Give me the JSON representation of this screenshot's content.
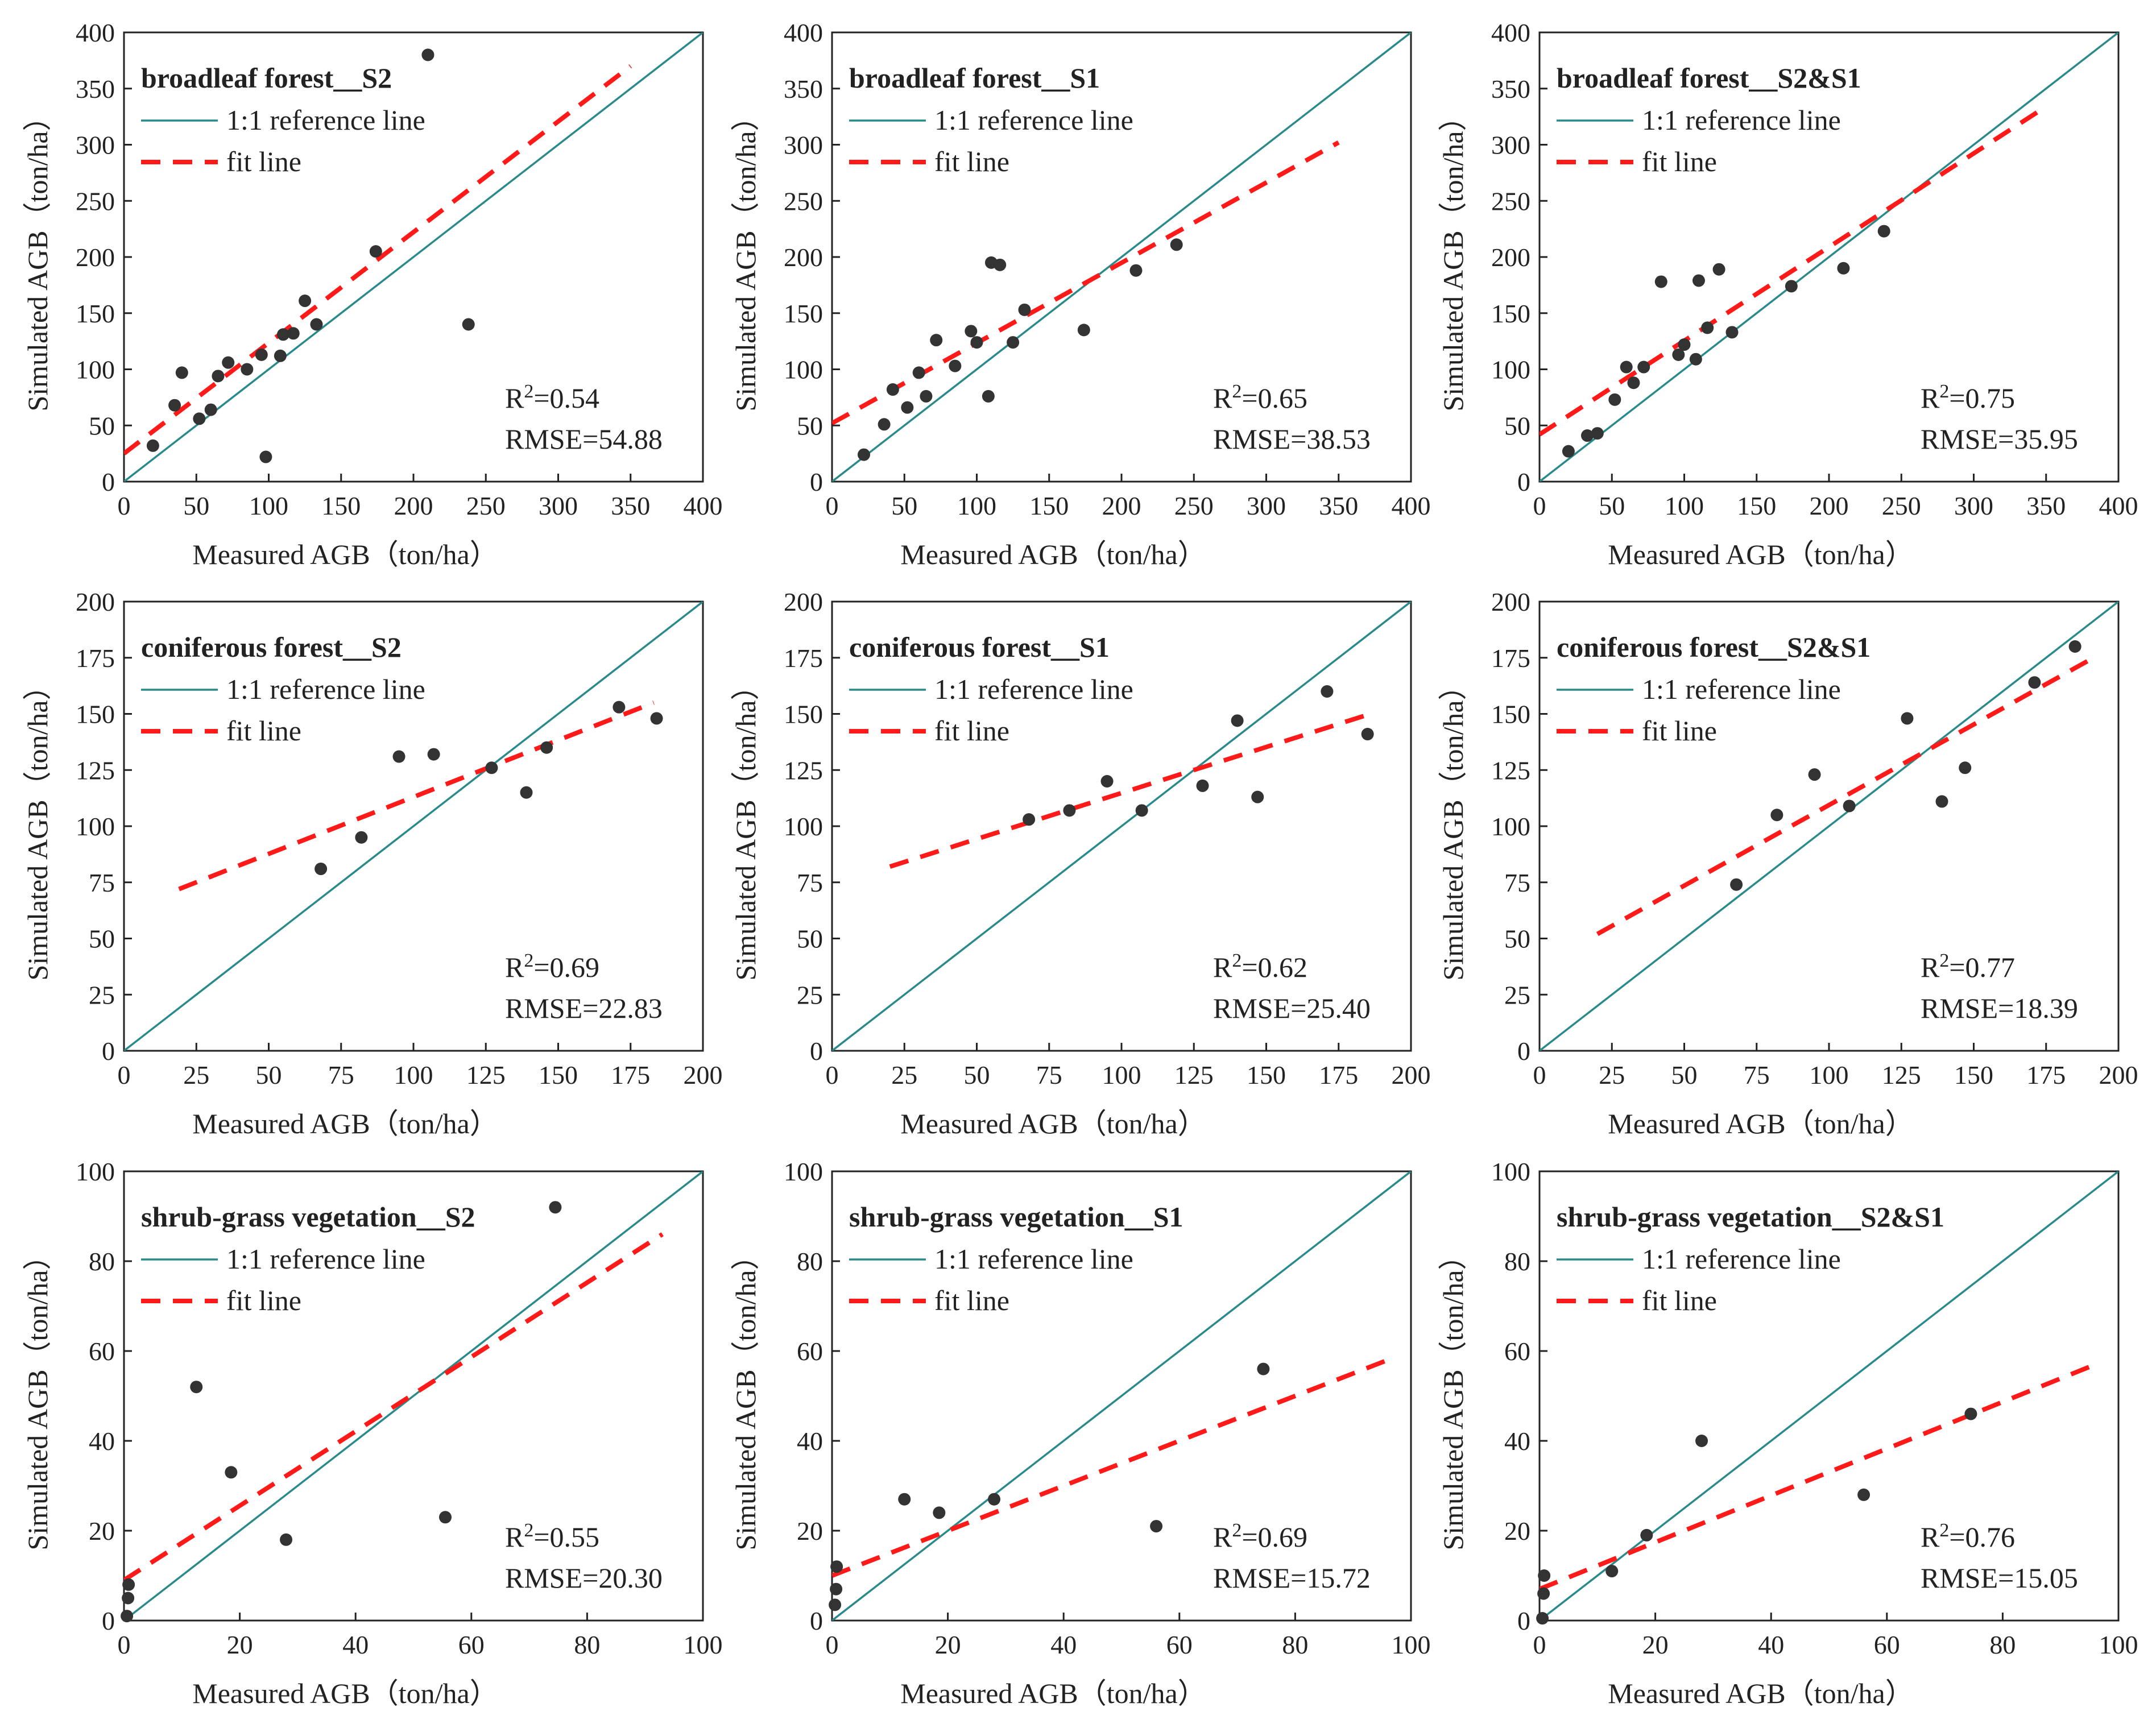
{
  "figure": {
    "colors": {
      "ref_line": "#2a8a8a",
      "fit_line": "#ff1a1a",
      "points": "#333333",
      "axis": "#222222"
    },
    "legend": {
      "ref_label": "1:1 reference line",
      "fit_label": "fit line"
    }
  },
  "chart_data": [
    {
      "type": "scatter",
      "title": "broadleaf forest__S2",
      "xlabel": "Measured AGB（ton/ha）",
      "ylabel": "Simulated AGB（ton/ha）",
      "xlim": [
        0,
        400
      ],
      "ylim": [
        0,
        400
      ],
      "xticks": [
        "0",
        "50",
        "100",
        "150",
        "200",
        "250",
        "300",
        "350",
        "400"
      ],
      "yticks": [
        "0",
        "50",
        "100",
        "150",
        "200",
        "250",
        "300",
        "350",
        "400"
      ],
      "tick_values": [
        0,
        50,
        100,
        150,
        200,
        250,
        300,
        350,
        400
      ],
      "r2": "R²=0.54",
      "rmse": "RMSE=54.88",
      "fit_line": [
        [
          0,
          25
        ],
        [
          350,
          370
        ]
      ],
      "points": [
        [
          20,
          32
        ],
        [
          35,
          68
        ],
        [
          40,
          97
        ],
        [
          52,
          56
        ],
        [
          60,
          64
        ],
        [
          65,
          94
        ],
        [
          72,
          106
        ],
        [
          85,
          100
        ],
        [
          95,
          113
        ],
        [
          98,
          22
        ],
        [
          108,
          112
        ],
        [
          110,
          131
        ],
        [
          117,
          132
        ],
        [
          125,
          161
        ],
        [
          133,
          140
        ],
        [
          174,
          205
        ],
        [
          210,
          380
        ],
        [
          238,
          140
        ]
      ]
    },
    {
      "type": "scatter",
      "title": "broadleaf forest__S1",
      "xlabel": "Measured AGB（ton/ha）",
      "ylabel": "Simulated AGB（ton/ha）",
      "xlim": [
        0,
        400
      ],
      "ylim": [
        0,
        400
      ],
      "xticks": [
        "0",
        "50",
        "100",
        "150",
        "200",
        "250",
        "300",
        "350",
        "400"
      ],
      "yticks": [
        "0",
        "50",
        "100",
        "150",
        "200",
        "250",
        "300",
        "350",
        "400"
      ],
      "tick_values": [
        0,
        50,
        100,
        150,
        200,
        250,
        300,
        350,
        400
      ],
      "r2": "R²=0.65",
      "rmse": "RMSE=38.53",
      "fit_line": [
        [
          0,
          52
        ],
        [
          350,
          302
        ]
      ],
      "points": [
        [
          22,
          24
        ],
        [
          36,
          51
        ],
        [
          42,
          82
        ],
        [
          52,
          66
        ],
        [
          60,
          97
        ],
        [
          65,
          76
        ],
        [
          72,
          126
        ],
        [
          85,
          103
        ],
        [
          96,
          134
        ],
        [
          100,
          124
        ],
        [
          108,
          76
        ],
        [
          110,
          195
        ],
        [
          116,
          193
        ],
        [
          125,
          124
        ],
        [
          133,
          153
        ],
        [
          174,
          135
        ],
        [
          210,
          188
        ],
        [
          238,
          211
        ]
      ]
    },
    {
      "type": "scatter",
      "title": "broadleaf forest__S2&S1",
      "xlabel": "Measured AGB（ton/ha）",
      "ylabel": "Simulated AGB（ton/ha）",
      "xlim": [
        0,
        400
      ],
      "ylim": [
        0,
        400
      ],
      "xticks": [
        "0",
        "50",
        "100",
        "150",
        "200",
        "250",
        "300",
        "350",
        "400"
      ],
      "yticks": [
        "0",
        "50",
        "100",
        "150",
        "200",
        "250",
        "300",
        "350",
        "400"
      ],
      "tick_values": [
        0,
        50,
        100,
        150,
        200,
        250,
        300,
        350,
        400
      ],
      "r2": "R²=0.75",
      "rmse": "RMSE=35.95",
      "fit_line": [
        [
          0,
          42
        ],
        [
          350,
          334
        ]
      ],
      "points": [
        [
          20,
          27
        ],
        [
          33,
          41
        ],
        [
          40,
          43
        ],
        [
          52,
          73
        ],
        [
          60,
          102
        ],
        [
          65,
          88
        ],
        [
          72,
          102
        ],
        [
          84,
          178
        ],
        [
          96,
          113
        ],
        [
          100,
          122
        ],
        [
          108,
          109
        ],
        [
          110,
          179
        ],
        [
          116,
          137
        ],
        [
          124,
          189
        ],
        [
          133,
          133
        ],
        [
          174,
          174
        ],
        [
          210,
          190
        ],
        [
          238,
          223
        ]
      ]
    },
    {
      "type": "scatter",
      "title": "coniferous forest__S2",
      "xlabel": "Measured AGB（ton/ha）",
      "ylabel": "Simulated AGB（ton/ha）",
      "xlim": [
        0,
        200
      ],
      "ylim": [
        0,
        200
      ],
      "xticks": [
        "0",
        "25",
        "50",
        "75",
        "100",
        "125",
        "150",
        "175",
        "200"
      ],
      "yticks": [
        "0",
        "25",
        "50",
        "75",
        "100",
        "125",
        "150",
        "175",
        "200"
      ],
      "tick_values": [
        0,
        25,
        50,
        75,
        100,
        125,
        150,
        175,
        200
      ],
      "r2": "R²=0.69",
      "rmse": "RMSE=22.83",
      "fit_line": [
        [
          19,
          72
        ],
        [
          183,
          155
        ]
      ],
      "points": [
        [
          68,
          81
        ],
        [
          82,
          95
        ],
        [
          95,
          131
        ],
        [
          107,
          132
        ],
        [
          127,
          126
        ],
        [
          139,
          115
        ],
        [
          146,
          135
        ],
        [
          171,
          153
        ],
        [
          184,
          148
        ]
      ]
    },
    {
      "type": "scatter",
      "title": "coniferous forest__S1",
      "xlabel": "Measured AGB（ton/ha）",
      "ylabel": "Simulated AGB（ton/ha）",
      "xlim": [
        0,
        200
      ],
      "ylim": [
        0,
        200
      ],
      "xticks": [
        "0",
        "25",
        "50",
        "75",
        "100",
        "125",
        "150",
        "175",
        "200"
      ],
      "yticks": [
        "0",
        "25",
        "50",
        "75",
        "100",
        "125",
        "150",
        "175",
        "200"
      ],
      "tick_values": [
        0,
        25,
        50,
        75,
        100,
        125,
        150,
        175,
        200
      ],
      "r2": "R²=0.62",
      "rmse": "RMSE=25.40",
      "fit_line": [
        [
          20,
          82
        ],
        [
          186,
          150
        ]
      ],
      "points": [
        [
          68,
          103
        ],
        [
          82,
          107
        ],
        [
          95,
          120
        ],
        [
          107,
          107
        ],
        [
          128,
          118
        ],
        [
          140,
          147
        ],
        [
          147,
          113
        ],
        [
          171,
          160
        ],
        [
          185,
          141
        ]
      ]
    },
    {
      "type": "scatter",
      "title": "coniferous forest__S2&S1",
      "xlabel": "Measured AGB（ton/ha）",
      "ylabel": "Simulated AGB（ton/ha）",
      "xlim": [
        0,
        200
      ],
      "ylim": [
        0,
        200
      ],
      "xticks": [
        "0",
        "25",
        "50",
        "75",
        "100",
        "125",
        "150",
        "175",
        "200"
      ],
      "yticks": [
        "0",
        "25",
        "50",
        "75",
        "100",
        "125",
        "150",
        "175",
        "200"
      ],
      "tick_values": [
        0,
        25,
        50,
        75,
        100,
        125,
        150,
        175,
        200
      ],
      "r2": "R²=0.77",
      "rmse": "RMSE=18.39",
      "fit_line": [
        [
          20,
          52
        ],
        [
          190,
          174
        ]
      ],
      "points": [
        [
          68,
          74
        ],
        [
          82,
          105
        ],
        [
          95,
          123
        ],
        [
          107,
          109
        ],
        [
          127,
          148
        ],
        [
          139,
          111
        ],
        [
          147,
          126
        ],
        [
          171,
          164
        ],
        [
          185,
          180
        ]
      ]
    },
    {
      "type": "scatter",
      "title": "shrub-grass vegetation__S2",
      "xlabel": "Measured AGB（ton/ha）",
      "ylabel": "Simulated AGB（ton/ha）",
      "xlim": [
        0,
        100
      ],
      "ylim": [
        0,
        100
      ],
      "xticks": [
        "0",
        "20",
        "40",
        "60",
        "80",
        "100"
      ],
      "yticks": [
        "0",
        "20",
        "40",
        "60",
        "80",
        "100"
      ],
      "tick_values": [
        0,
        20,
        40,
        60,
        80,
        100
      ],
      "r2": "R²=0.55",
      "rmse": "RMSE=20.30",
      "fit_line": [
        [
          0,
          9
        ],
        [
          93,
          86
        ]
      ],
      "points": [
        [
          0.5,
          1
        ],
        [
          0.7,
          5
        ],
        [
          0.8,
          8
        ],
        [
          12.5,
          52
        ],
        [
          18.5,
          33
        ],
        [
          28,
          18
        ],
        [
          55.5,
          23
        ],
        [
          74.5,
          92
        ]
      ]
    },
    {
      "type": "scatter",
      "title": "shrub-grass vegetation__S1",
      "xlabel": "Measured AGB（ton/ha）",
      "ylabel": "Simulated AGB（ton/ha）",
      "xlim": [
        0,
        100
      ],
      "ylim": [
        0,
        100
      ],
      "xticks": [
        "0",
        "20",
        "40",
        "60",
        "80",
        "100"
      ],
      "yticks": [
        "0",
        "20",
        "40",
        "60",
        "80",
        "100"
      ],
      "tick_values": [
        0,
        20,
        40,
        60,
        80,
        100
      ],
      "r2": "R²=0.69",
      "rmse": "RMSE=15.72",
      "fit_line": [
        [
          0,
          10
        ],
        [
          96,
          58
        ]
      ],
      "points": [
        [
          0.5,
          3.5
        ],
        [
          0.7,
          7
        ],
        [
          0.8,
          12
        ],
        [
          12.5,
          27
        ],
        [
          18.5,
          24
        ],
        [
          28,
          27
        ],
        [
          56,
          21
        ],
        [
          74.5,
          56
        ]
      ]
    },
    {
      "type": "scatter",
      "title": "shrub-grass vegetation__S2&S1",
      "xlabel": "Measured AGB（ton/ha）",
      "ylabel": "Simulated AGB（ton/ha）",
      "xlim": [
        0,
        100
      ],
      "ylim": [
        0,
        100
      ],
      "xticks": [
        "0",
        "20",
        "40",
        "60",
        "80",
        "100"
      ],
      "yticks": [
        "0",
        "20",
        "40",
        "60",
        "80",
        "100"
      ],
      "tick_values": [
        0,
        20,
        40,
        60,
        80,
        100
      ],
      "r2": "R²=0.76",
      "rmse": "RMSE=15.05",
      "fit_line": [
        [
          0,
          7
        ],
        [
          96,
          57
        ]
      ],
      "points": [
        [
          0.5,
          0.5
        ],
        [
          0.7,
          6
        ],
        [
          0.8,
          10
        ],
        [
          12.5,
          11
        ],
        [
          18.5,
          19
        ],
        [
          28,
          40
        ],
        [
          56,
          28
        ],
        [
          74.5,
          46
        ]
      ]
    }
  ]
}
